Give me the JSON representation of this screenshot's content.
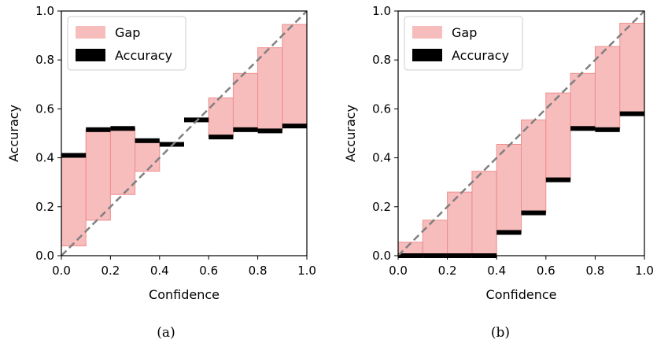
{
  "chart_data": [
    {
      "type": "bar",
      "caption": "(a)",
      "xlabel": "Confidence",
      "ylabel": "Accuracy",
      "xlim": [
        0.0,
        1.0
      ],
      "ylim": [
        0.0,
        1.0
      ],
      "xticks": [
        "0.0",
        "0.2",
        "0.4",
        "0.6",
        "0.8",
        "1.0"
      ],
      "yticks": [
        "0.0",
        "0.2",
        "0.4",
        "0.6",
        "0.8",
        "1.0"
      ],
      "bin_edges": [
        0.0,
        0.1,
        0.2,
        0.3,
        0.4,
        0.5,
        0.6,
        0.7,
        0.8,
        0.9,
        1.0
      ],
      "series": [
        {
          "name": "Gap",
          "color": "#f4a6a6",
          "kind": "gap",
          "values": [
            0.04,
            0.145,
            0.25,
            0.345,
            0.455,
            0.555,
            0.645,
            0.745,
            0.85,
            0.945
          ]
        },
        {
          "name": "Accuracy",
          "color": "#000000",
          "kind": "accuracy",
          "values": [
            0.41,
            0.515,
            0.52,
            0.47,
            0.455,
            0.555,
            0.485,
            0.515,
            0.51,
            0.53
          ]
        }
      ],
      "diagonal": true,
      "legend": "top-left",
      "grid": false
    },
    {
      "type": "bar",
      "caption": "(b)",
      "xlabel": "Confidence",
      "ylabel": "Accuracy",
      "xlim": [
        0.0,
        1.0
      ],
      "ylim": [
        0.0,
        1.0
      ],
      "xticks": [
        "0.0",
        "0.2",
        "0.4",
        "0.6",
        "0.8",
        "1.0"
      ],
      "yticks": [
        "0.0",
        "0.2",
        "0.4",
        "0.6",
        "0.8",
        "1.0"
      ],
      "bin_edges": [
        0.0,
        0.1,
        0.2,
        0.3,
        0.4,
        0.5,
        0.6,
        0.7,
        0.8,
        0.9,
        1.0
      ],
      "series": [
        {
          "name": "Gap",
          "color": "#f4a6a6",
          "kind": "gap",
          "values": [
            0.055,
            0.145,
            0.26,
            0.345,
            0.455,
            0.555,
            0.665,
            0.745,
            0.855,
            0.95
          ]
        },
        {
          "name": "Accuracy",
          "color": "#000000",
          "kind": "accuracy",
          "values": [
            0.0,
            0.0,
            0.0,
            0.0,
            0.095,
            0.175,
            0.31,
            0.52,
            0.515,
            0.58
          ]
        }
      ],
      "diagonal": true,
      "legend": "top-left",
      "grid": false
    }
  ]
}
